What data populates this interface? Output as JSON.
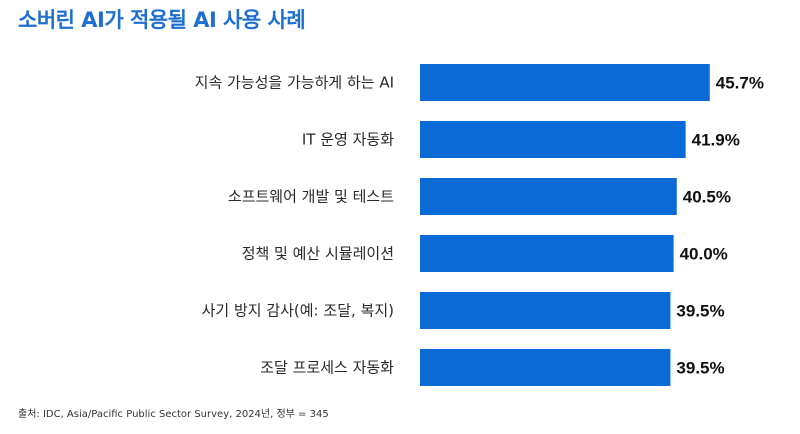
{
  "chart_data": {
    "type": "bar",
    "orientation": "horizontal",
    "title": "소버린 AI가 적용될 AI 사용 사례",
    "categories": [
      "지속 가능성을 가능하게 하는 AI",
      "IT 운영 자동화",
      "소프트웨어 개발 및 테스트",
      "정책 및 예산 시뮬레이션",
      "사기 방지 감사(예: 조달, 복지)",
      "조달 프로세스 자동화"
    ],
    "values": [
      45.7,
      41.9,
      40.5,
      40.0,
      39.5,
      39.5
    ],
    "value_labels": [
      "45.7%",
      "41.9%",
      "40.5%",
      "40.0%",
      "39.5%",
      "39.5%"
    ],
    "unit": "%",
    "bar_color": "#0a6bd6",
    "title_color": "#1f6fd0",
    "grid": false,
    "legend": "none"
  },
  "source": "출처: IDC, Asia/Pacific Public Sector Survey, 2024년, 정부 = 345"
}
